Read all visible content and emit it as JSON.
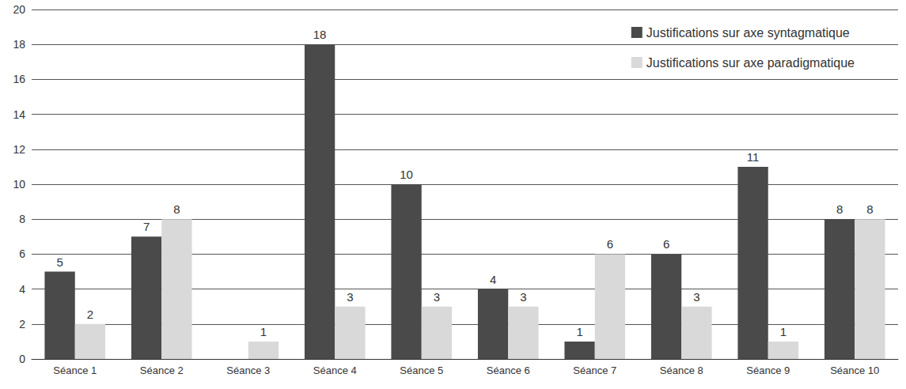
{
  "chart_data": {
    "type": "bar",
    "categories": [
      "Séance 1",
      "Séance 2",
      "Séance 3",
      "Séance 4",
      "Séance 5",
      "Séance 6",
      "Séance 7",
      "Séance 8",
      "Séance 9",
      "Séance 10"
    ],
    "series": [
      {
        "name": "Justifications sur axe syntagmatique",
        "color": "#4a4a4a",
        "values": [
          5,
          7,
          null,
          18,
          10,
          4,
          1,
          6,
          11,
          8
        ]
      },
      {
        "name": "Justifications sur axe paradigmatique",
        "color": "#d9d9d9",
        "values": [
          2,
          8,
          1,
          3,
          3,
          3,
          6,
          3,
          1,
          8
        ]
      }
    ],
    "ylim": [
      0,
      20
    ],
    "yticks": [
      0,
      2,
      4,
      6,
      8,
      10,
      12,
      14,
      16,
      18,
      20
    ],
    "grid": true,
    "legend": "upper right",
    "data_labels": true
  }
}
